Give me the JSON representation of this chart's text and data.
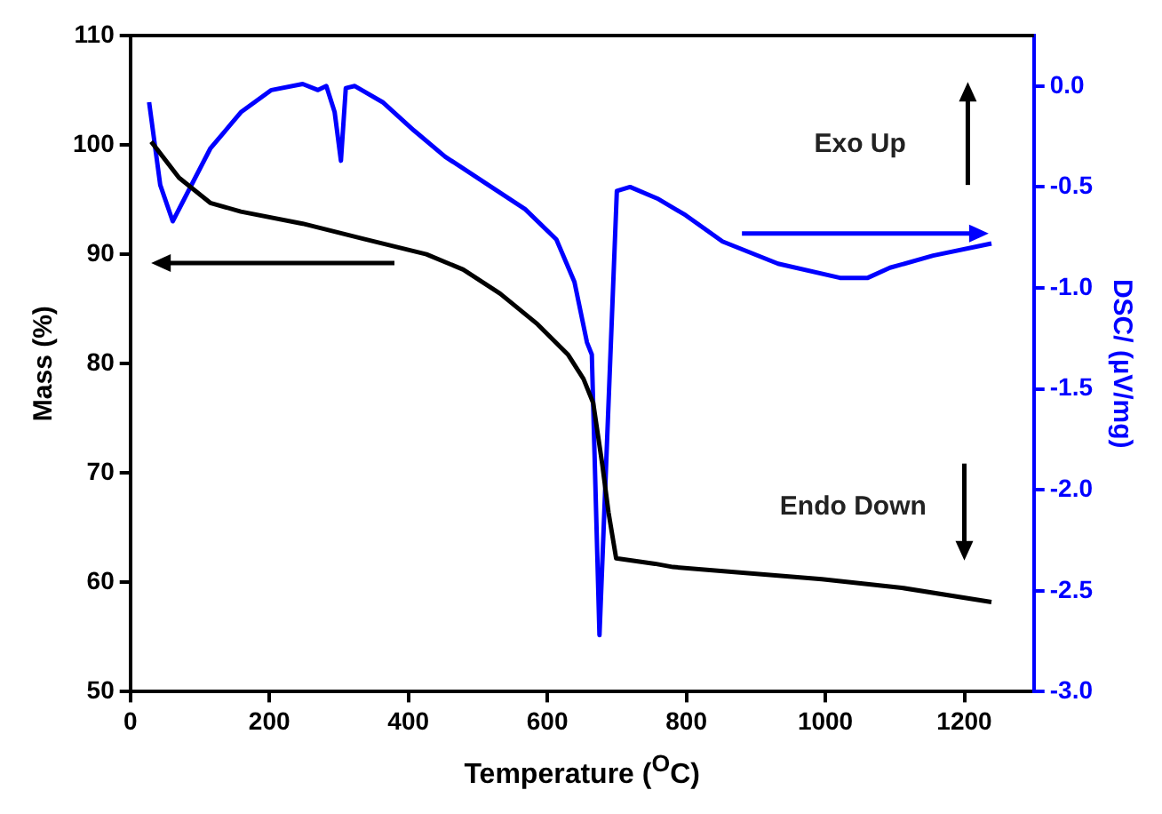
{
  "chart_data": {
    "type": "line",
    "xlabel": "Temperature ($^{O}$C)",
    "ylabel": "Mass (%)",
    "y2label": "DSC/ (µV/mg)",
    "xlim": [
      0,
      1300
    ],
    "xticks": [
      0,
      200,
      400,
      600,
      800,
      1000,
      1200
    ],
    "ylim": [
      50,
      110
    ],
    "yticks": [
      50,
      60,
      70,
      80,
      90,
      100,
      110
    ],
    "y2lim": [
      -3,
      0.25
    ],
    "y2ticks": [
      {
        "value": 0,
        "label": "0.0"
      },
      {
        "value": -0.5,
        "label": "-0.5"
      },
      {
        "value": -1,
        "label": "-1.0"
      },
      {
        "value": -1.5,
        "label": "-1.5"
      },
      {
        "value": -2,
        "label": "-2.0"
      },
      {
        "value": -2.5,
        "label": "-2.5"
      },
      {
        "value": -3,
        "label": "-3.0"
      }
    ],
    "marker": "none",
    "annotations": [
      "Exo Up",
      "Endo Down"
    ],
    "series": [
      {
        "color": "#000000",
        "x": [
          30,
          70,
          115,
          159,
          248,
          336,
          426,
          479,
          532,
          586,
          630,
          652,
          666,
          679,
          688,
          699,
          755,
          781,
          995,
          1110,
          1239
        ],
        "values": [
          100.3,
          97.0,
          94.7,
          93.9,
          92.8,
          91.4,
          90.0,
          88.6,
          86.4,
          83.6,
          80.8,
          78.6,
          76.4,
          70.8,
          66.4,
          62.2,
          61.7,
          61.4,
          60.3,
          59.5,
          58.2
        ]
      },
      {
        "color": "#0000ff",
        "axis": "y2",
        "x": [
          27,
          43,
          61,
          79,
          115,
          159,
          203,
          248,
          270,
          282,
          294,
          303,
          310,
          323,
          363,
          408,
          453,
          515,
          568,
          613,
          639,
          657,
          664,
          675,
          700,
          719,
          760,
          799,
          852,
          932,
          1021,
          1061,
          1093,
          1155,
          1239
        ],
        "values": [
          -0.08,
          -0.49,
          -0.67,
          -0.55,
          -0.31,
          -0.13,
          -0.02,
          0.01,
          -0.02,
          0.0,
          -0.13,
          -0.37,
          -0.01,
          0.0,
          -0.08,
          -0.22,
          -0.35,
          -0.49,
          -0.61,
          -0.76,
          -0.97,
          -1.27,
          -1.33,
          -2.72,
          -0.52,
          -0.5,
          -0.56,
          -0.64,
          -0.77,
          -0.88,
          -0.95,
          -0.95,
          -0.9,
          -0.84,
          -0.78
        ]
      }
    ]
  }
}
